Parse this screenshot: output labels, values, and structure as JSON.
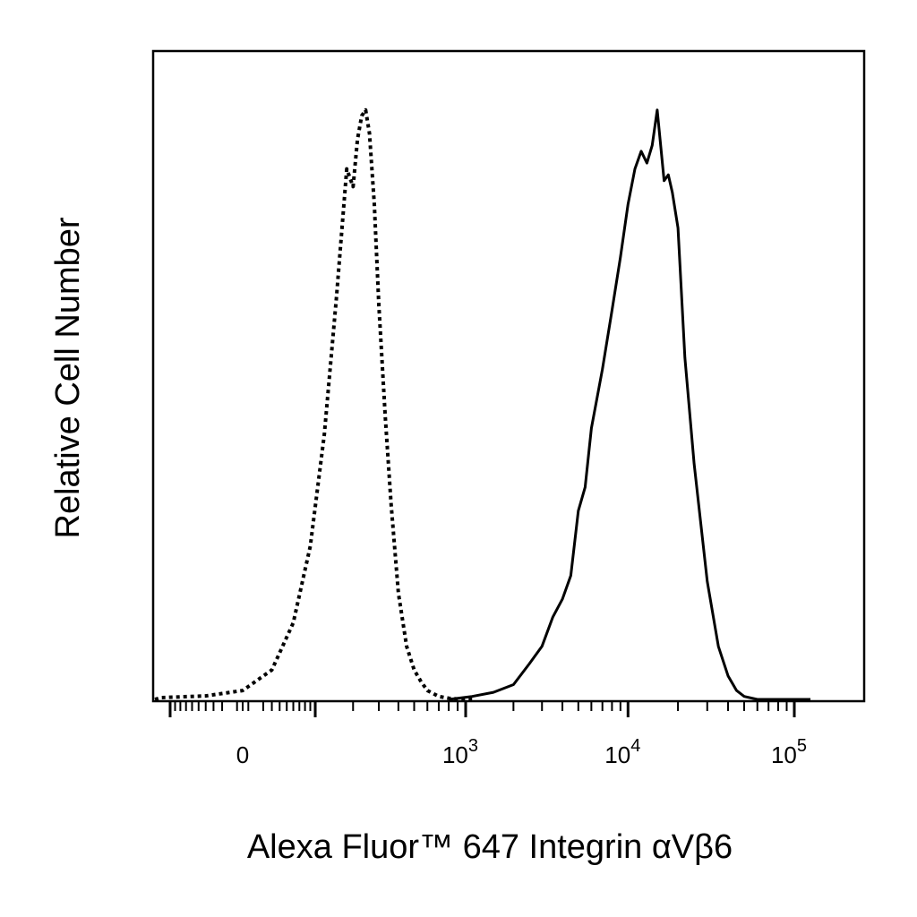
{
  "chart_data": {
    "type": "line",
    "xlabel": "Alexa Fluor™ 647 Integrin αVβ6",
    "ylabel": "Relative Cell Number",
    "x_scale": "biexponential",
    "x_ticks": [
      {
        "label": "0",
        "exp": ""
      },
      {
        "label": "10",
        "exp": "3"
      },
      {
        "label": "10",
        "exp": "4"
      },
      {
        "label": "10",
        "exp": "5"
      }
    ],
    "xlim": [
      -200,
      180000
    ],
    "ylim": [
      0,
      1.1
    ],
    "grid": false,
    "legend": "none",
    "series": [
      {
        "style": "dotted",
        "color": "#000000",
        "x": [
          -200,
          -120,
          -40,
          0,
          30,
          60,
          90,
          120,
          150,
          180,
          200,
          215,
          230,
          245,
          260,
          280,
          300,
          330,
          360,
          400,
          450,
          500,
          550,
          600,
          700,
          800,
          950,
          1100
        ],
        "y": [
          0.0,
          0.003,
          0.006,
          0.015,
          0.05,
          0.13,
          0.26,
          0.45,
          0.68,
          0.9,
          0.87,
          0.95,
          0.99,
          1.0,
          0.96,
          0.84,
          0.67,
          0.48,
          0.33,
          0.18,
          0.09,
          0.05,
          0.03,
          0.015,
          0.005,
          0.002,
          0.0,
          0.0
        ]
      },
      {
        "style": "solid",
        "color": "#000000",
        "x": [
          800,
          1100,
          1500,
          2000,
          2500,
          3000,
          3500,
          4000,
          4500,
          5000,
          5500,
          6000,
          7000,
          8000,
          9000,
          10000,
          11000,
          12000,
          13000,
          14000,
          15000,
          16500,
          17500,
          18500,
          20000,
          22000,
          25000,
          30000,
          35000,
          40000,
          45000,
          50000,
          60000,
          70000,
          80000,
          90000,
          100000,
          110000,
          125000
        ],
        "y": [
          0.0,
          0.005,
          0.012,
          0.025,
          0.06,
          0.09,
          0.14,
          0.17,
          0.21,
          0.32,
          0.36,
          0.46,
          0.56,
          0.66,
          0.75,
          0.84,
          0.9,
          0.93,
          0.91,
          0.94,
          1.0,
          0.88,
          0.89,
          0.86,
          0.8,
          0.58,
          0.4,
          0.2,
          0.09,
          0.04,
          0.015,
          0.005,
          0.0,
          0.0,
          0.0,
          0.0,
          0.0,
          0.0,
          0.0
        ]
      }
    ]
  }
}
